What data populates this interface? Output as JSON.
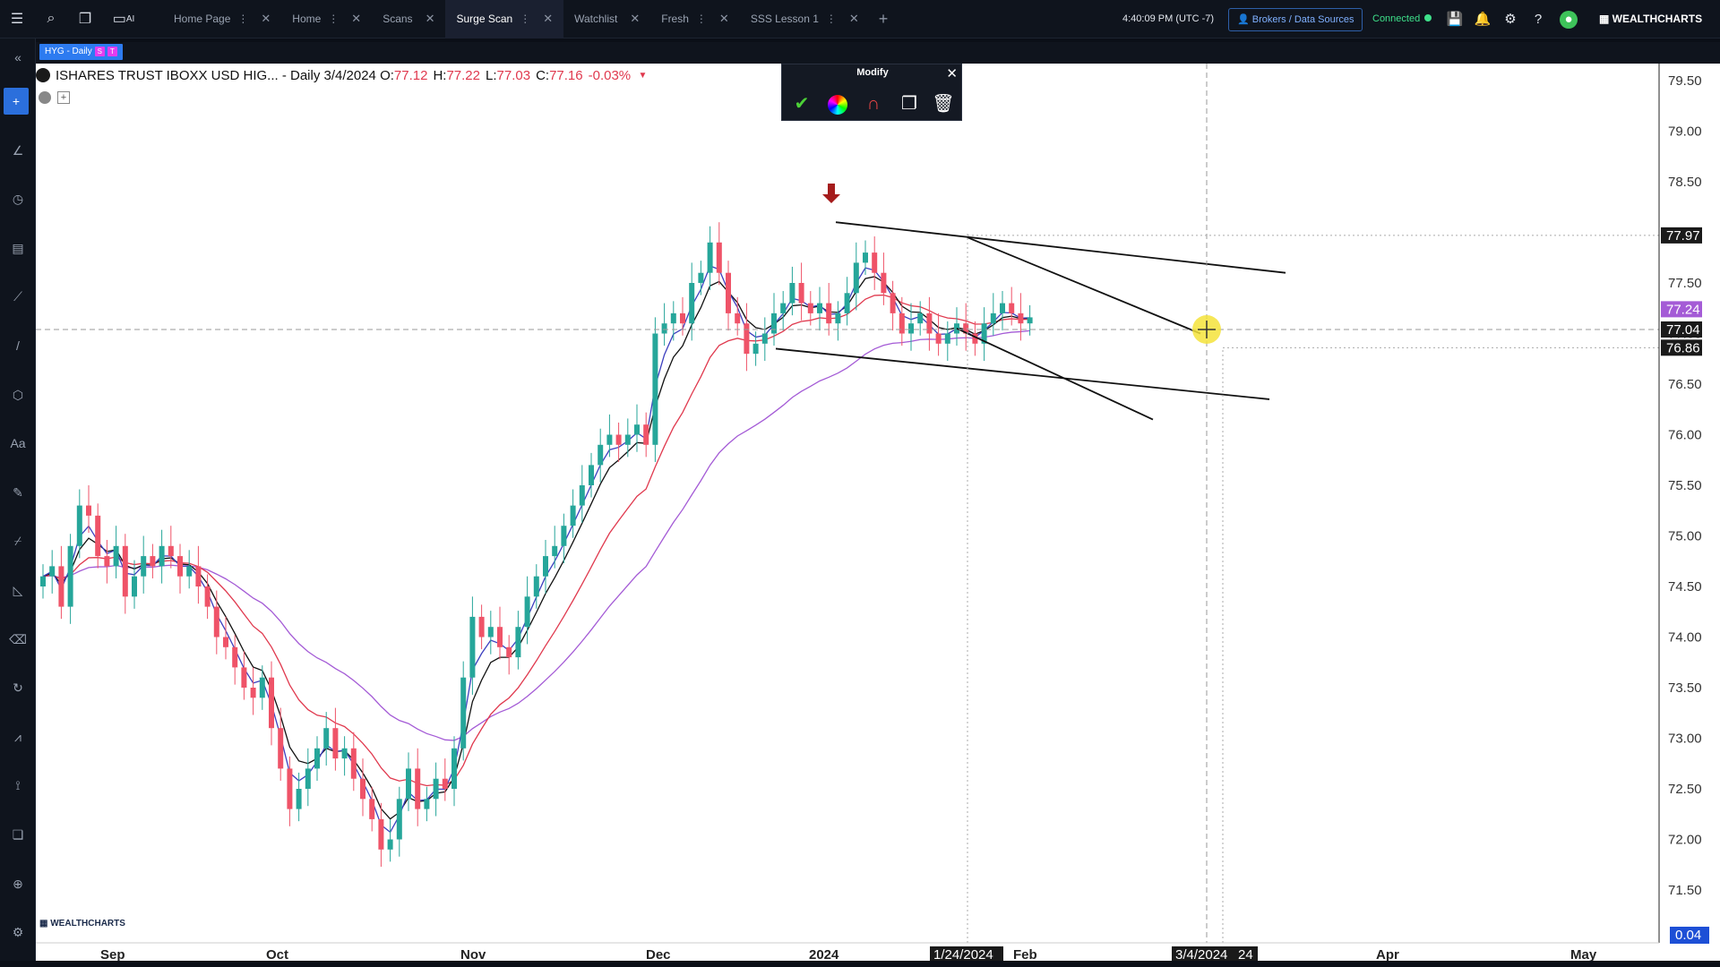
{
  "toolbar": {
    "icons": [
      "menu-icon",
      "search-icon",
      "windows-icon",
      "ai-monitor-icon"
    ],
    "ai_label": "AI"
  },
  "tabs": [
    {
      "label": "Home Page",
      "active": false,
      "menu": true
    },
    {
      "label": "Home",
      "active": false,
      "menu": true
    },
    {
      "label": "Scans",
      "active": false,
      "menu": false
    },
    {
      "label": "Surge Scan",
      "active": true,
      "menu": true
    },
    {
      "label": "Watchlist",
      "active": false,
      "menu": false
    },
    {
      "label": "Fresh",
      "active": false,
      "menu": true
    },
    {
      "label": "SSS Lesson 1",
      "active": false,
      "menu": true
    }
  ],
  "status": {
    "clock": "4:40:09 PM  (UTC -7)",
    "brokers": "Brokers / Data Sources",
    "connected": "Connected",
    "brand": "WEALTHCHARTS"
  },
  "symbol_tab": {
    "label": "HYG - Daily",
    "badge1": "S",
    "badge2": "T"
  },
  "legend": {
    "name": "ISHARES TRUST IBOXX USD HIG... - Daily 3/4/2024",
    "o_label": "O:",
    "o": "77.12",
    "h_label": "H:",
    "h": "77.22",
    "l_label": "L:",
    "l": "77.03",
    "c_label": "C:",
    "c": "77.16",
    "change": "-0.03%"
  },
  "modify": {
    "title": "Modify",
    "icons": [
      "check-icon",
      "color-wheel-icon",
      "magnet-icon",
      "copy-icon",
      "trash-icon"
    ]
  },
  "colors": {
    "up": "#26a69a",
    "down": "#ef5368",
    "ema_fast": "#3c3fbf",
    "ema_slow": "#111111",
    "ema_red": "#e0394e",
    "ema_purple": "#a45bd6",
    "accent": "#2b6fdc"
  },
  "chart_data": {
    "type": "candlestick",
    "y_ticks": [
      "79.50",
      "79.00",
      "78.50",
      "77.50",
      "77.00",
      "76.50",
      "76.00",
      "75.50",
      "75.00",
      "74.50",
      "74.00",
      "73.50",
      "73.00",
      "72.50",
      "72.00",
      "71.50"
    ],
    "y_tick_values": [
      79.5,
      79.0,
      78.5,
      77.5,
      77.0,
      76.5,
      76.0,
      75.5,
      75.0,
      74.5,
      74.0,
      73.5,
      73.0,
      72.5,
      72.0,
      71.5
    ],
    "x_labels": [
      "Sep",
      "Oct",
      "Nov",
      "Dec",
      "2024",
      "Feb",
      "Apr",
      "May"
    ],
    "price_tags": [
      {
        "label": "77.97",
        "value": 77.97,
        "bg": "#1a1a1a"
      },
      {
        "label": "77.24",
        "value": 77.24,
        "bg": "#a45bd6"
      },
      {
        "label": "77.04",
        "value": 77.04,
        "bg": "#1a1a1a"
      },
      {
        "label": "76.86",
        "value": 76.86,
        "bg": "#1a1a1a"
      }
    ],
    "x_markers": [
      "1/24/2024",
      "3/4/2024",
      "24"
    ],
    "crosshair_price": 77.04,
    "last_value": "0.04",
    "trendlines": [
      {
        "from": [
          "2023-12-20",
          78.1
        ],
        "to": [
          "2024-03-18",
          77.6
        ]
      },
      {
        "from": [
          "2023-12-15",
          76.85
        ],
        "to": [
          "2024-03-17",
          76.35
        ]
      },
      {
        "from": [
          "2024-01-24",
          77.95
        ],
        "to": [
          "2024-03-03",
          77.0
        ]
      },
      {
        "from": [
          "2024-01-20",
          77.05
        ],
        "to": [
          "2024-02-26",
          76.15
        ]
      }
    ],
    "closes": [
      74.6,
      74.7,
      74.3,
      74.9,
      75.3,
      75.2,
      74.8,
      74.7,
      74.9,
      74.4,
      74.6,
      74.8,
      74.7,
      74.9,
      74.8,
      74.6,
      74.7,
      74.5,
      74.3,
      74.0,
      73.9,
      73.7,
      73.5,
      73.4,
      73.6,
      73.1,
      72.7,
      72.3,
      72.5,
      72.7,
      72.9,
      73.1,
      72.8,
      72.9,
      72.6,
      72.4,
      72.2,
      71.9,
      72.0,
      72.4,
      72.7,
      72.3,
      72.4,
      72.6,
      72.5,
      72.9,
      73.6,
      74.2,
      74.0,
      74.1,
      73.9,
      73.8,
      74.1,
      74.4,
      74.6,
      74.8,
      74.9,
      75.1,
      75.3,
      75.5,
      75.7,
      75.9,
      76.0,
      75.9,
      76.0,
      76.1,
      75.9,
      77.0,
      77.1,
      77.2,
      77.1,
      77.5,
      77.6,
      77.9,
      77.6,
      77.2,
      77.1,
      76.8,
      76.9,
      77.0,
      77.2,
      77.3,
      77.5,
      77.3,
      77.2,
      77.3,
      77.1,
      77.2,
      77.4,
      77.7,
      77.8,
      77.6,
      77.4,
      77.2,
      77.0,
      77.1,
      77.2,
      77.0,
      76.9,
      77.0,
      77.1,
      77.0,
      76.9,
      77.1,
      77.2,
      77.3,
      77.2,
      77.1,
      77.16
    ]
  }
}
